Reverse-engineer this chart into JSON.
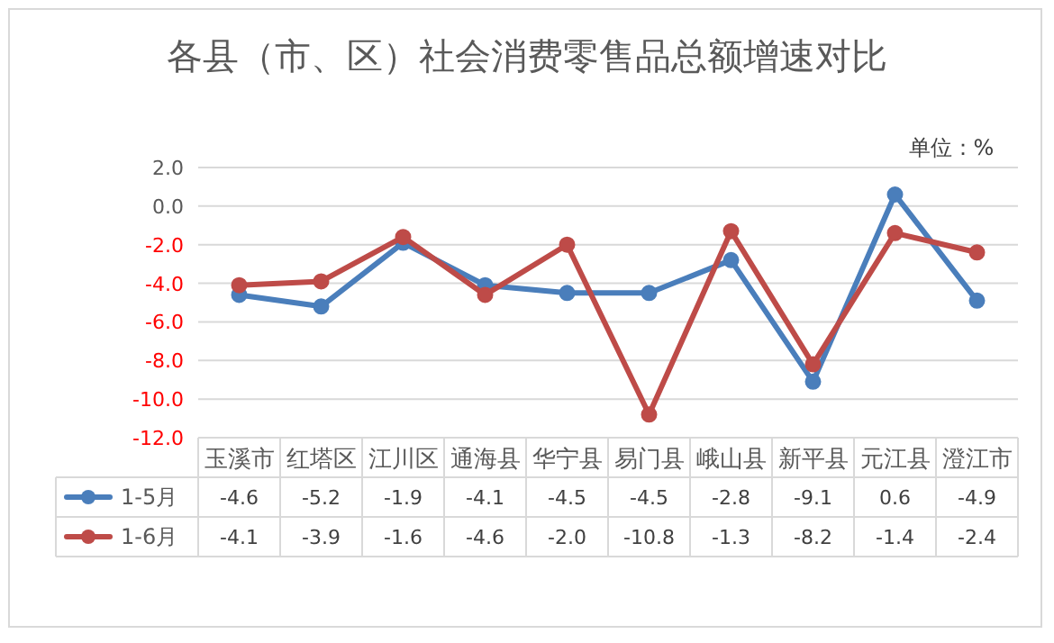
{
  "chart_data": {
    "type": "line",
    "title": "各县（市、区）社会消费零售品总额增速对比",
    "annotations": [
      "单位：%"
    ],
    "categories": [
      "玉溪市",
      "红塔区",
      "江川区",
      "通海县",
      "华宁县",
      "易门县",
      "峨山县",
      "新平县",
      "元江县",
      "澄江市"
    ],
    "series": [
      {
        "name": "1-5月",
        "color": "#4a7ebb",
        "values": [
          -4.6,
          -5.2,
          -1.9,
          -4.1,
          -4.5,
          -4.5,
          -2.8,
          -9.1,
          0.6,
          -4.9
        ],
        "value_labels": [
          "-4.6",
          "-5.2",
          "-1.9",
          "-4.1",
          "-4.5",
          "-4.5",
          "-2.8",
          "-9.1",
          "0.6",
          "-4.9"
        ]
      },
      {
        "name": "1-6月",
        "color": "#be4b48",
        "values": [
          -4.1,
          -3.9,
          -1.6,
          -4.6,
          -2.0,
          -10.8,
          -1.3,
          -8.2,
          -1.4,
          -2.4
        ],
        "value_labels": [
          "-4.1",
          "-3.9",
          "-1.6",
          "-4.6",
          "-2.0",
          "-10.8",
          "-1.3",
          "-8.2",
          "-1.4",
          "-2.4"
        ]
      }
    ],
    "ylim": [
      -12,
      2
    ],
    "yticks": [
      {
        "value": 2,
        "label": "2.0"
      },
      {
        "value": 0,
        "label": "0.0"
      },
      {
        "value": -2,
        "label": "-2.0"
      },
      {
        "value": -4,
        "label": "-4.0"
      },
      {
        "value": -6,
        "label": "-6.0"
      },
      {
        "value": -8,
        "label": "-8.0"
      },
      {
        "value": -10,
        "label": "-10.0"
      },
      {
        "value": -12,
        "label": "-12.0"
      }
    ],
    "grid": "y",
    "marker": "circle",
    "line_style": "solid",
    "legend": "bottom"
  }
}
